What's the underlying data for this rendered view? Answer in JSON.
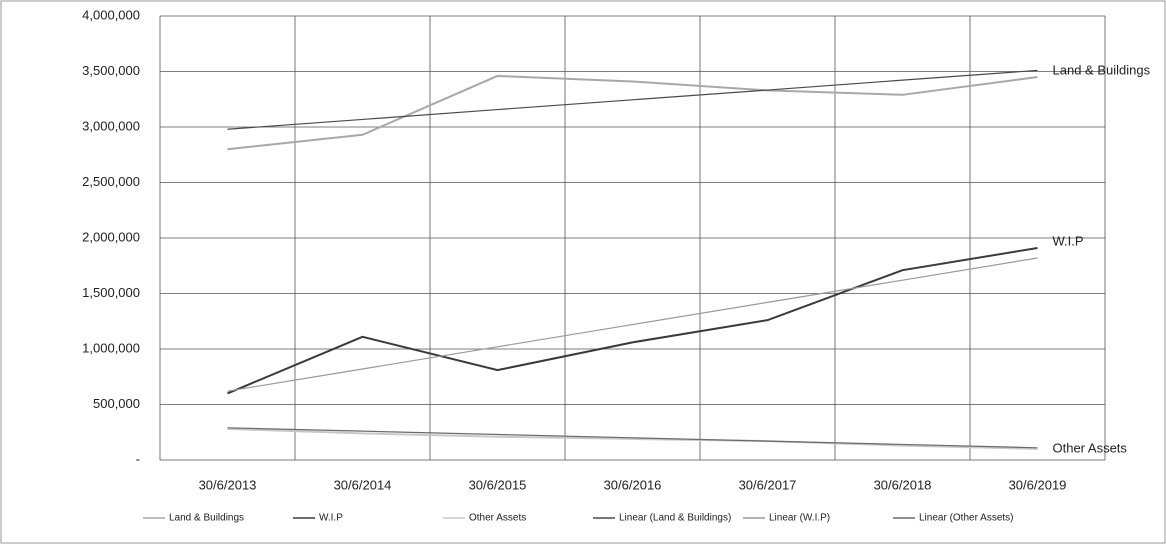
{
  "chart_data": {
    "type": "line",
    "categories": [
      "30/6/2013",
      "30/6/2014",
      "30/6/2015",
      "30/6/2016",
      "30/6/2017",
      "30/6/2018",
      "30/6/2019"
    ],
    "series": [
      {
        "name": "Land & Buildings",
        "color": "#a8a8a8",
        "values": [
          2800000,
          2930000,
          3460000,
          3410000,
          3330000,
          3290000,
          3450000
        ]
      },
      {
        "name": "W.I.P",
        "color": "#3a3a3a",
        "values": [
          600000,
          1110000,
          810000,
          1060000,
          1260000,
          1710000,
          1910000
        ]
      },
      {
        "name": "Other Assets",
        "color": "#c8c8c8",
        "values": [
          280000,
          240000,
          210000,
          190000,
          170000,
          130000,
          100000
        ]
      },
      {
        "name": "Linear (Land & Buildings)",
        "color": "#4a4a4a",
        "values": [
          2980000,
          3068000,
          3157000,
          3245000,
          3333000,
          3422000,
          3510000
        ]
      },
      {
        "name": "Linear (W.I.P)",
        "color": "#9a9a9a",
        "values": [
          620000,
          820000,
          1020000,
          1220000,
          1420000,
          1620000,
          1820000
        ]
      },
      {
        "name": "Linear (Other Assets)",
        "color": "#6a6a6a",
        "values": [
          290000,
          260000,
          230000,
          200000,
          170000,
          140000,
          110000
        ]
      }
    ],
    "annotations": [
      "Land & Buildings",
      "W.I.P",
      "Other Assets"
    ],
    "ylim": [
      0,
      4000000
    ],
    "yticks": [
      {
        "value": 0,
        "label": "-"
      },
      {
        "value": 500000,
        "label": "500,000"
      },
      {
        "value": 1000000,
        "label": "1,000,000"
      },
      {
        "value": 1500000,
        "label": "1,500,000"
      },
      {
        "value": 2000000,
        "label": "2,000,000"
      },
      {
        "value": 2500000,
        "label": "2,500,000"
      },
      {
        "value": 3000000,
        "label": "3,000,000"
      },
      {
        "value": 3500000,
        "label": "3,500,000"
      },
      {
        "value": 4000000,
        "label": "4,000,000"
      }
    ],
    "grid": true,
    "legend": "bottom"
  }
}
